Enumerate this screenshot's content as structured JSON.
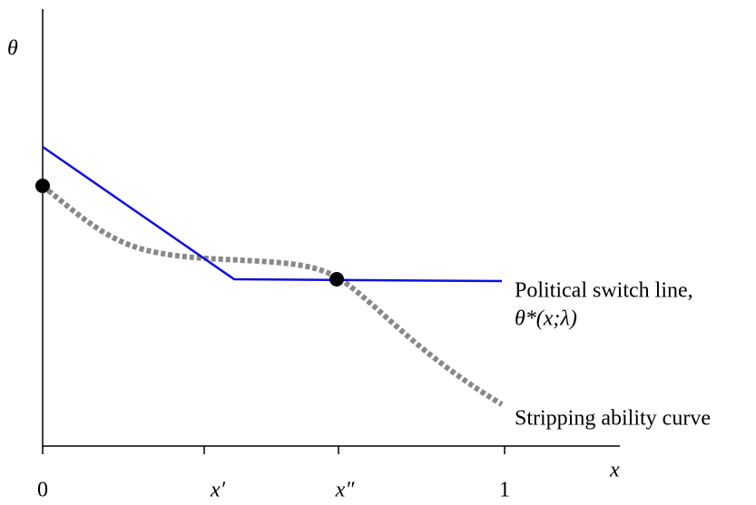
{
  "axes": {
    "y_label": "θ",
    "x_label": "x",
    "x_ticks": [
      "0",
      "x′",
      "x″",
      "1"
    ]
  },
  "curves": {
    "political_line_1": "Political switch line,",
    "political_line_2": "θ*(x;λ)",
    "stripping": "Stripping ability curve"
  }
}
